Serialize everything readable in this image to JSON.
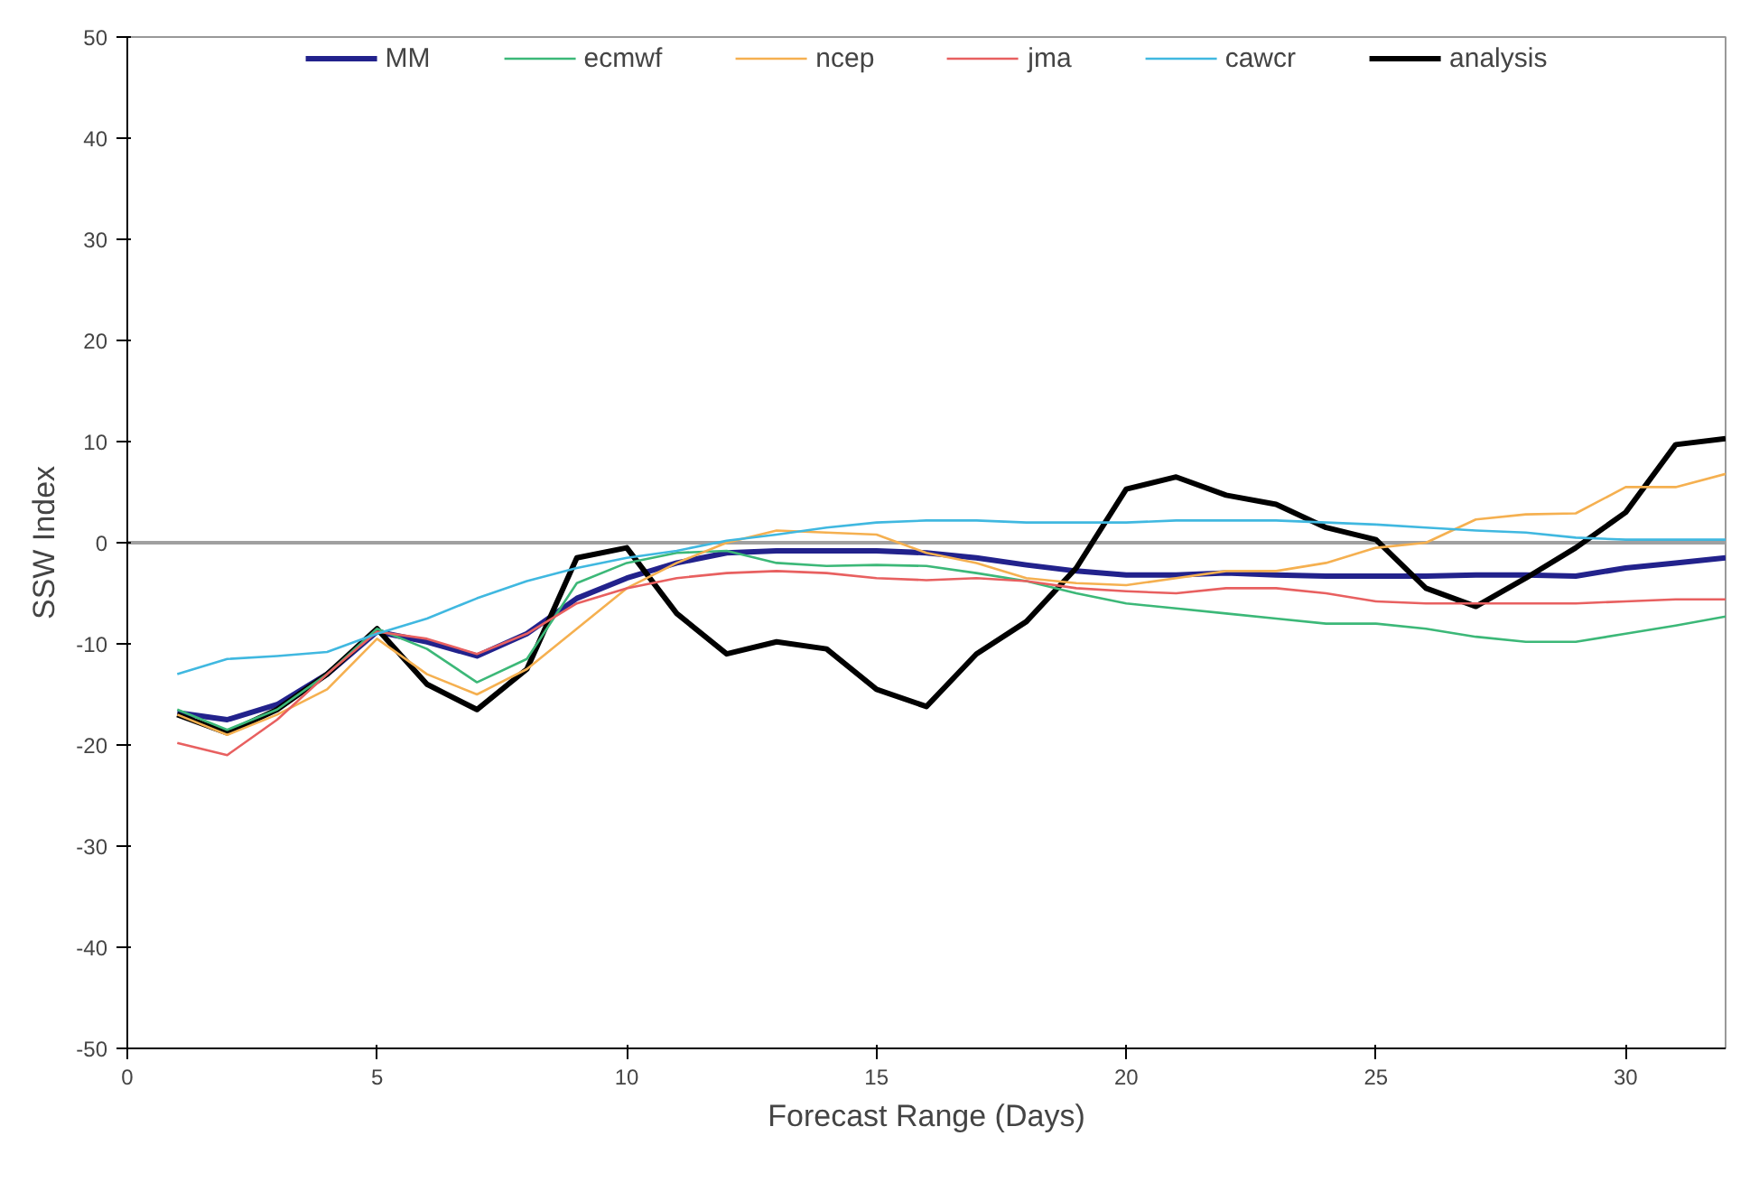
{
  "chart_data": {
    "type": "line",
    "xlabel": "Forecast Range (Days)",
    "ylabel": "SSW Index",
    "x": [
      1,
      2,
      3,
      4,
      5,
      6,
      7,
      8,
      9,
      10,
      11,
      12,
      13,
      14,
      15,
      16,
      17,
      18,
      19,
      20,
      21,
      22,
      23,
      24,
      25,
      26,
      27,
      28,
      29,
      30,
      31,
      32
    ],
    "xlim": [
      0,
      32
    ],
    "xticks": [
      0,
      5,
      10,
      15,
      20,
      25,
      30
    ],
    "ylim": [
      -50,
      50
    ],
    "yticks": [
      -50,
      -40,
      -30,
      -20,
      -10,
      0,
      10,
      20,
      30,
      40,
      50
    ],
    "grid": false,
    "legend": "top",
    "line_style": "solid",
    "marker": "none",
    "ref_lines": [
      {
        "axis": "y",
        "value": 0,
        "label": null,
        "color": "#a0a0a0"
      }
    ],
    "series": [
      {
        "name": "MM",
        "color": "#22228c",
        "values": [
          -16.8,
          -17.5,
          -16,
          -13,
          -8.8,
          -9.8,
          -11.2,
          -9,
          -5.5,
          -3.5,
          -2,
          -1,
          -0.8,
          -0.8,
          -0.8,
          -1,
          -1.5,
          -2.2,
          -2.8,
          -3.2,
          -3.2,
          -3,
          -3.2,
          -3.3,
          -3.3,
          -3.3,
          -3.2,
          -3.2,
          -3.3,
          -2.5,
          -2,
          -1.5
        ]
      },
      {
        "name": "ecmwf",
        "color": "#3cb878",
        "values": [
          -16.5,
          -18.5,
          -16.5,
          -13,
          -8.5,
          -10.5,
          -13.8,
          -11.5,
          -4,
          -2,
          -1,
          -0.8,
          -2,
          -2.3,
          -2.2,
          -2.3,
          -3,
          -3.8,
          -5,
          -6,
          -6.5,
          -7,
          -7.5,
          -8,
          -8,
          -8.5,
          -9.3,
          -9.8,
          -9.8,
          -9,
          -8.2,
          -7.3
        ]
      },
      {
        "name": "ncep",
        "color": "#f5b050",
        "values": [
          -17,
          -19,
          -17,
          -14.5,
          -9.5,
          -13,
          -15,
          -12.5,
          -8.5,
          -4.5,
          -2,
          0,
          1.2,
          1,
          0.8,
          -1,
          -2,
          -3.5,
          -4,
          -4.2,
          -3.5,
          -2.8,
          -2.8,
          -2,
          -0.5,
          0,
          2.3,
          2.8,
          2.9,
          5.5,
          5.5,
          6.8
        ]
      },
      {
        "name": "jma",
        "color": "#e86060",
        "values": [
          -19.8,
          -21,
          -17.5,
          -13,
          -8.8,
          -9.5,
          -11,
          -9,
          -6,
          -4.5,
          -3.5,
          -3,
          -2.8,
          -3,
          -3.5,
          -3.7,
          -3.5,
          -3.8,
          -4.5,
          -4.8,
          -5,
          -4.5,
          -4.5,
          -5,
          -5.8,
          -6,
          -6,
          -6,
          -6,
          -5.8,
          -5.6,
          -5.6
        ]
      },
      {
        "name": "cawcr",
        "color": "#40b8e0",
        "values": [
          -13,
          -11.5,
          -11.2,
          -10.8,
          -9,
          -7.5,
          -5.5,
          -3.8,
          -2.5,
          -1.5,
          -0.8,
          0.2,
          0.8,
          1.5,
          2,
          2.2,
          2.2,
          2,
          2,
          2,
          2.2,
          2.2,
          2.2,
          2,
          1.8,
          1.5,
          1.2,
          1,
          0.5,
          0.3,
          0.3,
          0.3
        ]
      },
      {
        "name": "analysis",
        "color": "#000000",
        "values": [
          -17,
          -18.8,
          -16.5,
          -13,
          -8.5,
          -14,
          -16.5,
          -12.5,
          -1.5,
          -0.5,
          -7,
          -11,
          -9.8,
          -10.5,
          -14.5,
          -16.2,
          -11,
          -7.8,
          -2.5,
          5.3,
          6.5,
          4.7,
          3.8,
          1.5,
          0.3,
          -4.5,
          -6.3,
          -3.5,
          -0.5,
          3,
          9.7,
          10.3
        ]
      }
    ]
  }
}
